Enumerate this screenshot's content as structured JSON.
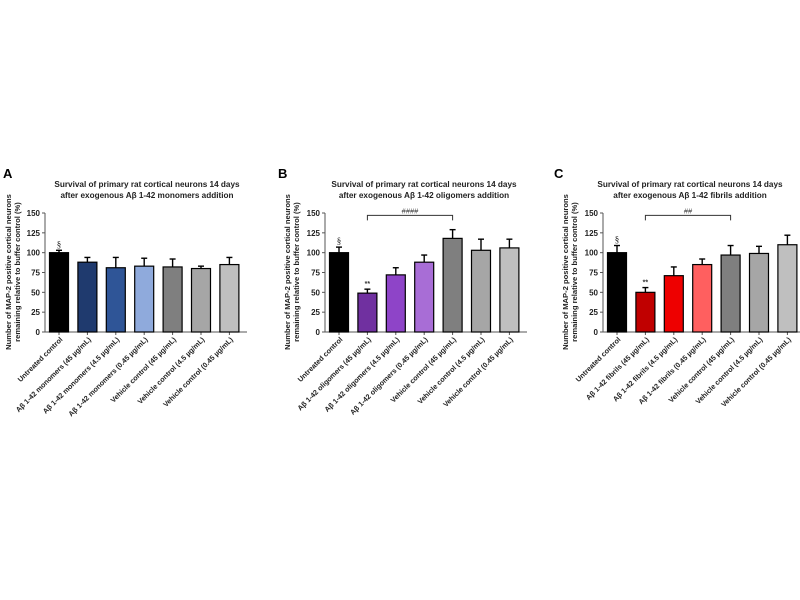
{
  "chart_data": [
    {
      "panel": "A",
      "type": "bar",
      "title": "Survival of primary rat cortical neurons 14 days after exogenous Aβ 1-42 monomers addition",
      "title_lines": [
        "Survival of primary rat cortical neurons 14 days",
        "after exogenous Aβ 1-42 monomers addition"
      ],
      "ylabel_lines": [
        "Number of MAP-2 positive cortical neurons",
        "remaining relative to buffer control (%)"
      ],
      "xlabel": "",
      "ylim": [
        0,
        150
      ],
      "yticks": [
        "0",
        "25",
        "50",
        "75",
        "100",
        "125",
        "150"
      ],
      "categories": [
        "Untreated control",
        "Aβ 1-42 monomers (45 µg/mL)",
        "Aβ 1-42 monomers (4.5 µg/mL)",
        "Aβ 1-42 monomers (0.45 µg/mL)",
        "Vehicle control (45 µg/mL)",
        "Vehicle control (4.5 µg/mL)",
        "Vehicle control (0.45 µg/mL)"
      ],
      "values": [
        100,
        88,
        81,
        83,
        82,
        80,
        85
      ],
      "errors": [
        3,
        6,
        13,
        10,
        10,
        3,
        9
      ],
      "colors": [
        "#000000",
        "#1f3a6e",
        "#2f5597",
        "#8faadc",
        "#7f7f7f",
        "#a6a6a6",
        "#bfbfbf"
      ],
      "annotations": [
        {
          "category": 0,
          "text": "§"
        }
      ],
      "bracket": null
    },
    {
      "panel": "B",
      "type": "bar",
      "title": "Survival of primary rat cortical neurons 14 days after exogenous Aβ 1-42 oligomers addition",
      "title_lines": [
        "Survival of primary rat cortical neurons 14 days",
        "after exogenous Aβ 1-42 oligomers addition"
      ],
      "ylabel_lines": [
        "Number of MAP-2 positive cortical neurons",
        "remaining relative to buffer control (%)"
      ],
      "xlabel": "",
      "ylim": [
        0,
        150
      ],
      "yticks": [
        "0",
        "25",
        "50",
        "75",
        "100",
        "125",
        "150"
      ],
      "categories": [
        "Untreated control",
        "Aβ 1-42 oligomers (45 µg/mL)",
        "Aβ 1-42 oligomers (4.5 µg/mL)",
        "Aβ 1-42 oligomers (0.45 µg/mL)",
        "Vehicle control (45 µg/mL)",
        "Vehicle control (4.5 µg/mL)",
        "Vehicle control (0.45 µg/mL)"
      ],
      "values": [
        100,
        49,
        72,
        88,
        118,
        103,
        106
      ],
      "errors": [
        7,
        5,
        9,
        9,
        11,
        14,
        11
      ],
      "colors": [
        "#000000",
        "#7030a0",
        "#8e44c8",
        "#a86dd6",
        "#7f7f7f",
        "#a6a6a6",
        "#bfbfbf"
      ],
      "annotations": [
        {
          "category": 0,
          "text": "§"
        },
        {
          "category": 1,
          "text": "**"
        }
      ],
      "bracket": {
        "from": 1,
        "to": 4,
        "text": "####"
      }
    },
    {
      "panel": "C",
      "type": "bar",
      "title": "Survival of primary rat cortical neurons 14 days after exogenous Aβ 1-42 fibrils addition",
      "title_lines": [
        "Survival of primary rat cortical neurons 14 days",
        "after exogenous Aβ 1-42 fibrils addition"
      ],
      "ylabel_lines": [
        "Number of MAP-2 positive cortical neurons",
        "remaining relative to buffer control (%)"
      ],
      "xlabel": "",
      "ylim": [
        0,
        150
      ],
      "yticks": [
        "0",
        "25",
        "50",
        "75",
        "100",
        "125",
        "150"
      ],
      "categories": [
        "Untreated control",
        "Aβ 1-42 fibrils (45 µg/mL)",
        "Aβ 1-42 fibrils (4.5 µg/mL)",
        "Aβ 1-42 fibrils (0.45 µg/mL)",
        "Vehicle control (45 µg/mL)",
        "Vehicle control (4.5 µg/mL)",
        "Vehicle control (0.45 µg/mL)"
      ],
      "values": [
        100,
        50,
        71,
        85,
        97,
        99,
        110
      ],
      "errors": [
        9,
        6,
        11,
        7,
        12,
        9,
        12
      ],
      "colors": [
        "#000000",
        "#c00000",
        "#ee0000",
        "#ff5f5f",
        "#7f7f7f",
        "#a6a6a6",
        "#bfbfbf"
      ],
      "annotations": [
        {
          "category": 0,
          "text": "§"
        },
        {
          "category": 1,
          "text": "**"
        }
      ],
      "bracket": {
        "from": 1,
        "to": 4,
        "text": "##"
      }
    }
  ]
}
